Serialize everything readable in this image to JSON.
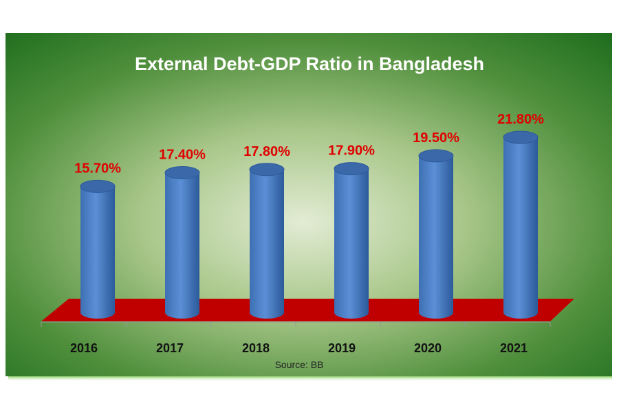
{
  "chart_data": {
    "type": "bar",
    "style": "3d-cylinder",
    "title": "External Debt-GDP Ratio in Bangladesh",
    "categories": [
      "2016",
      "2017",
      "2018",
      "2019",
      "2020",
      "2021"
    ],
    "values": [
      15.7,
      17.4,
      17.8,
      17.9,
      19.5,
      21.8
    ],
    "data_labels": [
      "15.70%",
      "17.40%",
      "17.80%",
      "17.90%",
      "19.50%",
      "21.80%"
    ],
    "xlabel": "",
    "ylabel": "",
    "ylim": [
      0,
      22
    ],
    "grid": false,
    "legend": "none",
    "source": "Source: BB",
    "colors": {
      "bar": "#4f81c7",
      "bar_dark": "#2f5d9e",
      "label": "#e00000",
      "floor": "#c00000",
      "background_outer": "#1f6f1f",
      "background_center": "#dfead0",
      "title": "#ffffff"
    }
  }
}
